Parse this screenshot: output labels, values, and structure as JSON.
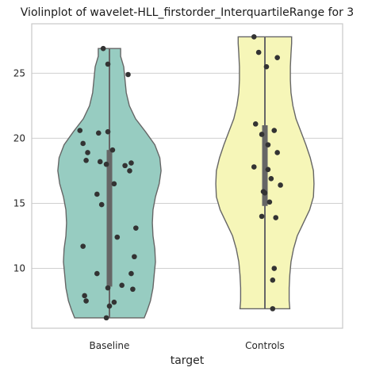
{
  "chart_data": {
    "type": "violin",
    "title": "Violinplot of wavelet-HLL_firstorder_InterquartileRange for 3",
    "xlabel": "target",
    "ylabel": "",
    "categories": [
      "Baseline",
      "Controls"
    ],
    "ylim": [
      5.4,
      28.8
    ],
    "yticks": [
      10,
      15,
      20,
      25
    ],
    "grid": true,
    "colors": {
      "Baseline": "#97ccc1",
      "Controls": "#f6f6b8",
      "outline": "#666666",
      "points": "#333333",
      "grid": "#d0d0d0",
      "frame": "#c8c8c8"
    },
    "violins": [
      {
        "name": "Baseline",
        "range": [
          6.2,
          26.9
        ],
        "box": {
          "q1": 8.6,
          "median": 17.1,
          "q3": 19.1
        },
        "density": [
          [
            6.2,
            0.56
          ],
          [
            6.8,
            0.61
          ],
          [
            7.5,
            0.66
          ],
          [
            8.5,
            0.7
          ],
          [
            9.5,
            0.72
          ],
          [
            10.5,
            0.74
          ],
          [
            11.5,
            0.73
          ],
          [
            12.5,
            0.7
          ],
          [
            13.5,
            0.69
          ],
          [
            14.5,
            0.7
          ],
          [
            15.5,
            0.74
          ],
          [
            16.5,
            0.8
          ],
          [
            17.5,
            0.83
          ],
          [
            18.5,
            0.81
          ],
          [
            19.5,
            0.73
          ],
          [
            20.5,
            0.58
          ],
          [
            21.5,
            0.42
          ],
          [
            22.5,
            0.32
          ],
          [
            23.5,
            0.27
          ],
          [
            24.5,
            0.25
          ],
          [
            25.5,
            0.23
          ],
          [
            26.3,
            0.18
          ],
          [
            26.9,
            0.18
          ]
        ],
        "points": [
          [
            -0.04,
            26.9
          ],
          [
            -0.01,
            25.7
          ],
          [
            0.12,
            24.9
          ],
          [
            -0.19,
            20.6
          ],
          [
            -0.07,
            20.4
          ],
          [
            -0.01,
            20.5
          ],
          [
            -0.17,
            19.6
          ],
          [
            -0.14,
            18.9
          ],
          [
            0.02,
            19.1
          ],
          [
            -0.15,
            18.3
          ],
          [
            -0.06,
            18.2
          ],
          [
            -0.02,
            18.0
          ],
          [
            0.1,
            17.9
          ],
          [
            0.14,
            18.1
          ],
          [
            0.13,
            17.5
          ],
          [
            0.03,
            16.5
          ],
          [
            -0.08,
            15.7
          ],
          [
            -0.05,
            14.9
          ],
          [
            0.17,
            13.1
          ],
          [
            0.05,
            12.4
          ],
          [
            -0.17,
            11.7
          ],
          [
            0.16,
            10.9
          ],
          [
            -0.08,
            9.6
          ],
          [
            0.14,
            9.6
          ],
          [
            0.08,
            8.7
          ],
          [
            -0.01,
            8.5
          ],
          [
            0.15,
            8.4
          ],
          [
            -0.16,
            7.9
          ],
          [
            0.03,
            7.4
          ],
          [
            -0.15,
            7.5
          ],
          [
            0.0,
            7.1
          ],
          [
            -0.02,
            6.2
          ]
        ]
      },
      {
        "name": "Controls",
        "range": [
          6.9,
          27.8
        ],
        "box": {
          "q1": 14.8,
          "median": 17.4,
          "q3": 21.0
        },
        "density": [
          [
            6.9,
            0.4
          ],
          [
            7.5,
            0.39
          ],
          [
            8.5,
            0.39
          ],
          [
            9.5,
            0.4
          ],
          [
            10.5,
            0.42
          ],
          [
            11.5,
            0.46
          ],
          [
            12.5,
            0.52
          ],
          [
            13.5,
            0.62
          ],
          [
            14.5,
            0.72
          ],
          [
            15.5,
            0.78
          ],
          [
            16.5,
            0.79
          ],
          [
            17.5,
            0.78
          ],
          [
            18.5,
            0.73
          ],
          [
            19.5,
            0.66
          ],
          [
            20.5,
            0.58
          ],
          [
            21.5,
            0.5
          ],
          [
            22.5,
            0.45
          ],
          [
            23.5,
            0.42
          ],
          [
            24.5,
            0.41
          ],
          [
            25.5,
            0.41
          ],
          [
            26.5,
            0.42
          ],
          [
            27.3,
            0.43
          ],
          [
            27.8,
            0.43
          ]
        ],
        "points": [
          [
            -0.07,
            27.8
          ],
          [
            -0.04,
            26.6
          ],
          [
            0.08,
            26.2
          ],
          [
            0.01,
            25.5
          ],
          [
            -0.06,
            21.1
          ],
          [
            0.06,
            20.6
          ],
          [
            -0.02,
            20.3
          ],
          [
            0.02,
            19.5
          ],
          [
            0.08,
            18.9
          ],
          [
            0.02,
            17.6
          ],
          [
            -0.07,
            17.8
          ],
          [
            0.04,
            16.9
          ],
          [
            0.1,
            16.4
          ],
          [
            -0.01,
            15.9
          ],
          [
            0.0,
            15.8
          ],
          [
            0.03,
            15.1
          ],
          [
            -0.02,
            14.0
          ],
          [
            0.07,
            13.9
          ],
          [
            0.06,
            10.0
          ],
          [
            0.05,
            9.1
          ],
          [
            0.05,
            6.9
          ]
        ]
      }
    ]
  }
}
